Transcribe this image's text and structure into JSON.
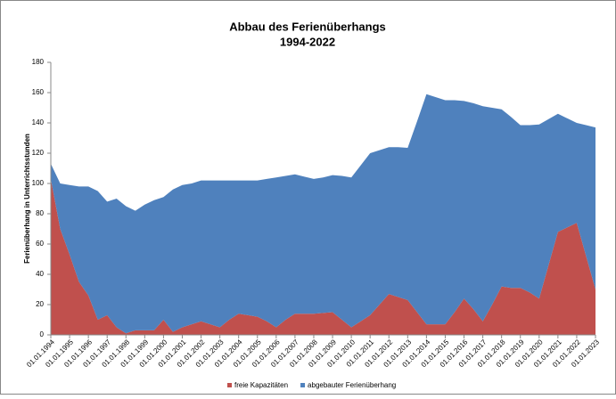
{
  "chart_data": {
    "type": "stacked-area",
    "title": "Abbau des Ferienüberhangs",
    "subtitle": "1994-2022",
    "y_label": "Ferienüberhang in Unterrichtsstunden",
    "categories": [
      "01.01.1994",
      null,
      "01.01.1995",
      null,
      "01.01.1996",
      null,
      "01.01.1997",
      null,
      "01.01.1998",
      null,
      "01.01.1999",
      null,
      "01.01.2000",
      null,
      "01.01.2001",
      null,
      "01.01.2002",
      null,
      "01.01.2003",
      null,
      "01.01.2004",
      null,
      "01.01.2005",
      null,
      "01.01.2006",
      null,
      "01.01.2007",
      null,
      "01.01.2008",
      null,
      "01.01.2009",
      null,
      "01.01.2010",
      null,
      "01.01.2011",
      null,
      "01.01.2012",
      null,
      "01.01.2013",
      null,
      "01.01.2014",
      null,
      "01.01.2015",
      null,
      "01.01.2016",
      null,
      "01.01.2017",
      null,
      "01.01.2018",
      null,
      "01.01.2019",
      null,
      "01.01.2020",
      null,
      "01.01.2021",
      null,
      "01.01.2022",
      null,
      "01.01.2023"
    ],
    "series": [
      {
        "name": "freie Kapazitäten",
        "color": "#c0504d",
        "values": [
          103,
          70,
          53,
          35,
          26,
          10,
          13,
          5,
          1,
          3,
          3,
          3,
          10,
          2,
          5,
          7,
          9,
          7,
          5,
          10,
          14,
          13,
          12,
          9,
          5,
          10,
          14,
          14,
          14,
          14.5,
          15,
          10,
          5,
          9,
          13,
          20,
          27,
          25,
          23,
          15,
          7,
          7,
          7,
          15,
          24,
          17,
          9,
          20,
          32,
          31,
          31,
          28,
          24,
          46,
          68,
          71,
          74,
          52,
          30
        ]
      },
      {
        "name": "abgebauter Ferienüberhang",
        "color": "#4f81bd",
        "values": [
          10,
          30,
          46,
          63,
          72,
          85,
          75,
          85,
          84,
          79,
          83,
          86,
          81,
          94,
          94,
          93,
          93,
          95,
          97,
          92,
          88,
          89,
          90,
          94,
          99,
          95,
          92,
          90.5,
          89,
          89.5,
          90.5,
          95,
          99,
          103,
          107,
          102,
          97,
          99,
          100.5,
          126,
          152,
          150,
          148,
          140,
          130.5,
          136,
          142,
          130,
          117,
          113,
          107.5,
          110.5,
          115,
          96.5,
          78,
          72,
          66,
          86.5,
          107
        ]
      }
    ],
    "ylim": [
      0,
      180
    ],
    "yticks": [
      0,
      20,
      40,
      60,
      80,
      100,
      120,
      140,
      160,
      180
    ],
    "grid": false,
    "legend": "bottom"
  }
}
